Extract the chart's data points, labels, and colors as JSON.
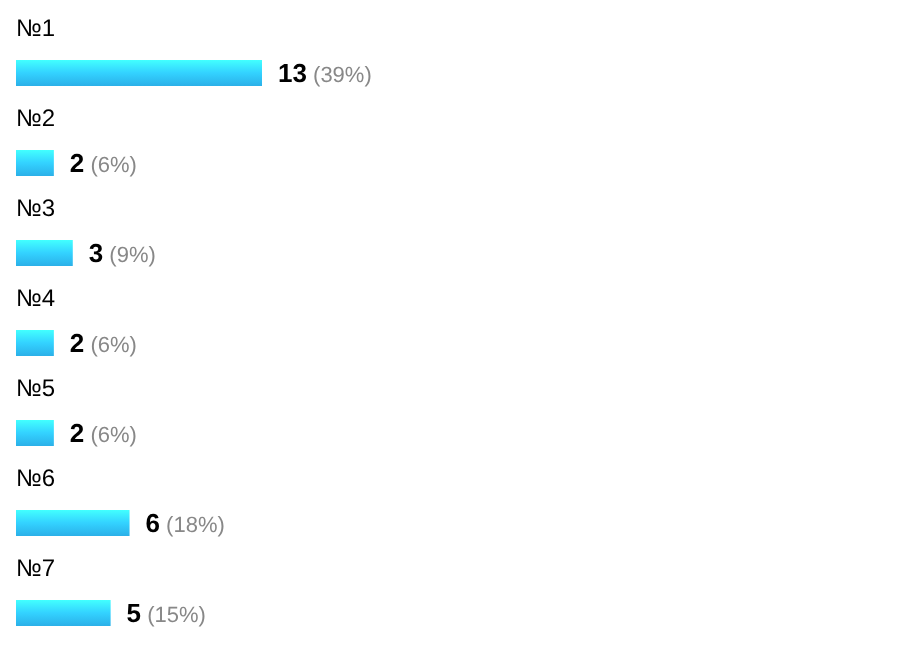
{
  "chart_data": {
    "type": "bar",
    "orientation": "horizontal",
    "categories": [
      "№1",
      "№2",
      "№3",
      "№4",
      "№5",
      "№6",
      "№7"
    ],
    "values": [
      13,
      2,
      3,
      2,
      2,
      6,
      5
    ],
    "color": "#2bb0e8",
    "value_labels": [
      "13 (39%)",
      "2 (6%)",
      "3 (9%)",
      "2 (6%)",
      "2 (6%)",
      "6 (18%)",
      "5 (15%)"
    ]
  }
}
